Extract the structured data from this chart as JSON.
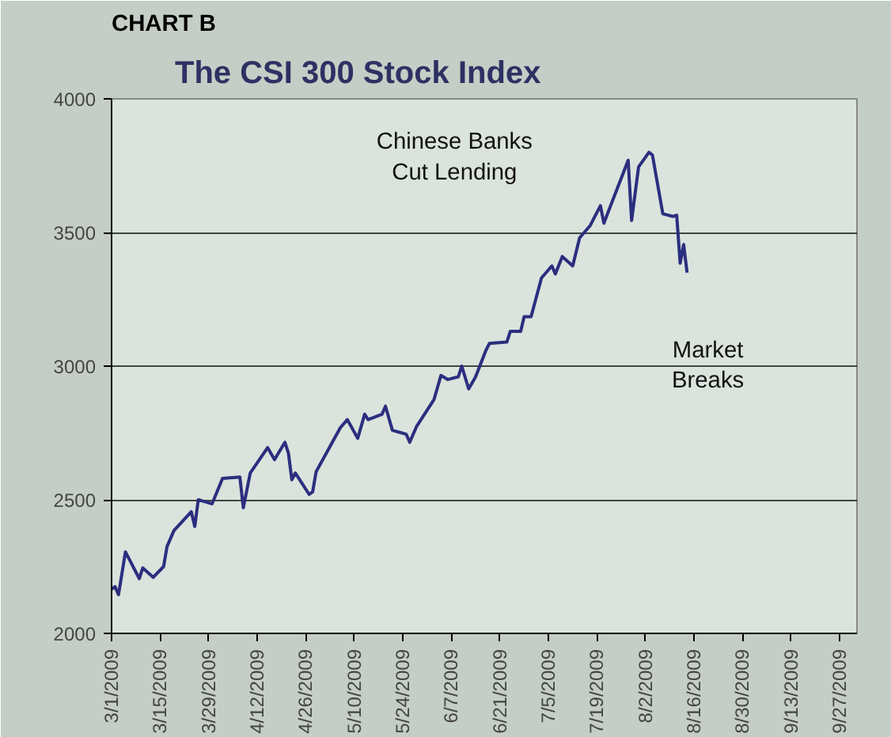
{
  "chart_data": {
    "type": "line",
    "title": "The CSI 300 Stock Index",
    "subtitle": "CHART B",
    "x": [
      "2009-03-01",
      "2009-03-02",
      "2009-03-03",
      "2009-03-05",
      "2009-03-09",
      "2009-03-10",
      "2009-03-13",
      "2009-03-16",
      "2009-03-17",
      "2009-03-19",
      "2009-03-24",
      "2009-03-25",
      "2009-03-26",
      "2009-03-30",
      "2009-04-02",
      "2009-04-07",
      "2009-04-08",
      "2009-04-10",
      "2009-04-15",
      "2009-04-17",
      "2009-04-20",
      "2009-04-21",
      "2009-04-22",
      "2009-04-23",
      "2009-04-27",
      "2009-04-28",
      "2009-04-29",
      "2009-05-06",
      "2009-05-08",
      "2009-05-11",
      "2009-05-13",
      "2009-05-14",
      "2009-05-18",
      "2009-05-19",
      "2009-05-21",
      "2009-05-25",
      "2009-05-26",
      "2009-05-28",
      "2009-06-02",
      "2009-06-04",
      "2009-06-06",
      "2009-06-09",
      "2009-06-10",
      "2009-06-12",
      "2009-06-14",
      "2009-06-17",
      "2009-06-18",
      "2009-06-23",
      "2009-06-24",
      "2009-06-27",
      "2009-06-28",
      "2009-06-30",
      "2009-07-03",
      "2009-07-06",
      "2009-07-07",
      "2009-07-09",
      "2009-07-12",
      "2009-07-14",
      "2009-07-17",
      "2009-07-20",
      "2009-07-21",
      "2009-07-28",
      "2009-07-29",
      "2009-07-31",
      "2009-08-03",
      "2009-08-04",
      "2009-08-07",
      "2009-08-10",
      "2009-08-11",
      "2009-08-12",
      "2009-08-13",
      "2009-08-14"
    ],
    "series": [
      {
        "color": "#2b2e7f",
        "values": [
          2165,
          2175,
          2145,
          2305,
          2205,
          2245,
          2210,
          2250,
          2325,
          2385,
          2455,
          2400,
          2500,
          2485,
          2580,
          2585,
          2470,
          2600,
          2695,
          2650,
          2715,
          2675,
          2575,
          2600,
          2520,
          2530,
          2605,
          2770,
          2800,
          2730,
          2820,
          2800,
          2820,
          2850,
          2760,
          2745,
          2715,
          2775,
          2875,
          2965,
          2950,
          2960,
          3000,
          2915,
          2960,
          3060,
          3085,
          3090,
          3130,
          3130,
          3185,
          3185,
          3330,
          3375,
          3345,
          3410,
          3375,
          3480,
          3525,
          3600,
          3535,
          3770,
          3545,
          3745,
          3800,
          3790,
          3570,
          3560,
          3565,
          3385,
          3455,
          3350
        ]
      }
    ],
    "xlim": [
      "2009-03-01",
      "2009-10-02"
    ],
    "xticks": [
      {
        "value": "2009-03-01",
        "label": "3/1/2009"
      },
      {
        "value": "2009-03-15",
        "label": "3/15/2009"
      },
      {
        "value": "2009-03-29",
        "label": "3/29/2009"
      },
      {
        "value": "2009-04-12",
        "label": "4/12/2009"
      },
      {
        "value": "2009-04-26",
        "label": "4/26/2009"
      },
      {
        "value": "2009-05-10",
        "label": "5/10/2009"
      },
      {
        "value": "2009-05-24",
        "label": "5/24/2009"
      },
      {
        "value": "2009-06-07",
        "label": "6/7/2009"
      },
      {
        "value": "2009-06-21",
        "label": "6/21/2009"
      },
      {
        "value": "2009-07-05",
        "label": "7/5/2009"
      },
      {
        "value": "2009-07-19",
        "label": "7/19/2009"
      },
      {
        "value": "2009-08-02",
        "label": "8/2/2009"
      },
      {
        "value": "2009-08-16",
        "label": "8/16/2009"
      },
      {
        "value": "2009-08-30",
        "label": "8/30/2009"
      },
      {
        "value": "2009-09-13",
        "label": "9/13/2009"
      },
      {
        "value": "2009-09-27",
        "label": "9/27/2009"
      }
    ],
    "ylim": [
      2000,
      4000
    ],
    "yticks": [
      2000,
      2500,
      3000,
      3500,
      4000
    ],
    "grid": "y",
    "annotations": [
      "Chinese Banks\nCut Lending",
      "Market\nBreaks"
    ]
  }
}
